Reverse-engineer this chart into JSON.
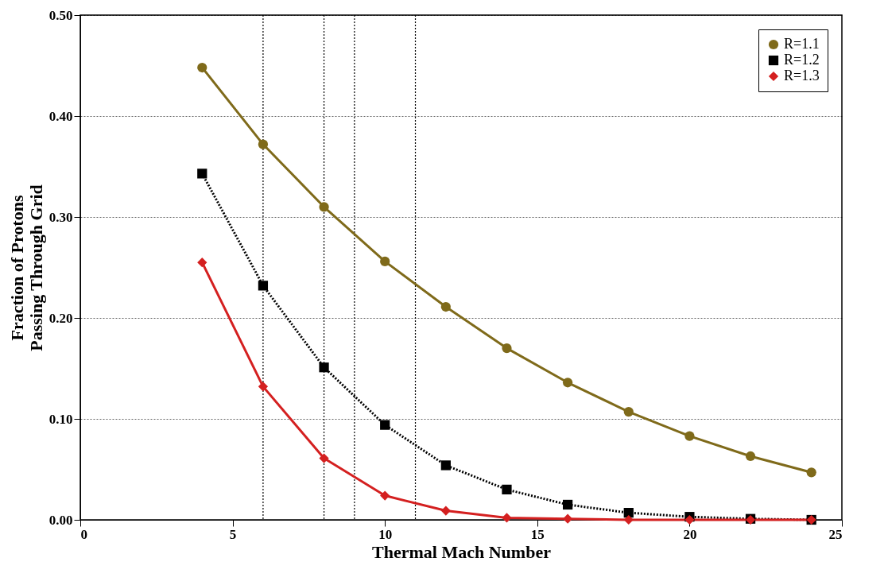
{
  "chart_data": {
    "type": "line",
    "xlabel": "Thermal Mach Number",
    "ylabel": "Fraction of Protons\nPassing Through Grid",
    "x": [
      4,
      6,
      8,
      10,
      12,
      14,
      16,
      18,
      20,
      22,
      24
    ],
    "series": [
      {
        "name": "R=1.1",
        "color": "#7f6a1a",
        "marker": "circle",
        "line_style": "solid",
        "values": [
          0.448,
          0.372,
          0.31,
          0.256,
          0.211,
          0.17,
          0.136,
          0.107,
          0.083,
          0.063,
          0.047
        ]
      },
      {
        "name": "R=1.2",
        "color": "#000000",
        "marker": "square",
        "line_style": "dotted",
        "values": [
          0.343,
          0.232,
          0.151,
          0.094,
          0.054,
          0.03,
          0.015,
          0.007,
          0.003,
          0.001,
          0.0
        ]
      },
      {
        "name": "R=1.3",
        "color": "#d42020",
        "marker": "diamond",
        "line_style": "solid",
        "values": [
          0.255,
          0.132,
          0.061,
          0.024,
          0.009,
          0.002,
          0.001,
          0.0,
          0.0,
          0.0,
          0.0
        ]
      }
    ],
    "xlim": [
      0,
      25
    ],
    "xticks": [
      0,
      5,
      10,
      15,
      20,
      25
    ],
    "ylim": [
      0,
      0.5
    ],
    "yticks": [
      {
        "value": 0,
        "label": "0.00"
      },
      {
        "value": 0.1,
        "label": "0.10"
      },
      {
        "value": 0.2,
        "label": "0.20"
      },
      {
        "value": 0.3,
        "label": "0.30"
      },
      {
        "value": 0.4,
        "label": "0.40"
      },
      {
        "value": 0.5,
        "label": "0.50"
      }
    ],
    "ref_lines": [
      {
        "axis": "x",
        "value": 6,
        "color": "#000000",
        "line_style": "dotted"
      },
      {
        "axis": "x",
        "value": 8,
        "color": "#000000",
        "line_style": "dotted"
      },
      {
        "axis": "x",
        "value": 9,
        "color": "#000000",
        "line_style": "dotted"
      },
      {
        "axis": "x",
        "value": 11,
        "color": "#000000",
        "line_style": "dotted"
      }
    ],
    "grid": "y",
    "legend": "top right"
  }
}
